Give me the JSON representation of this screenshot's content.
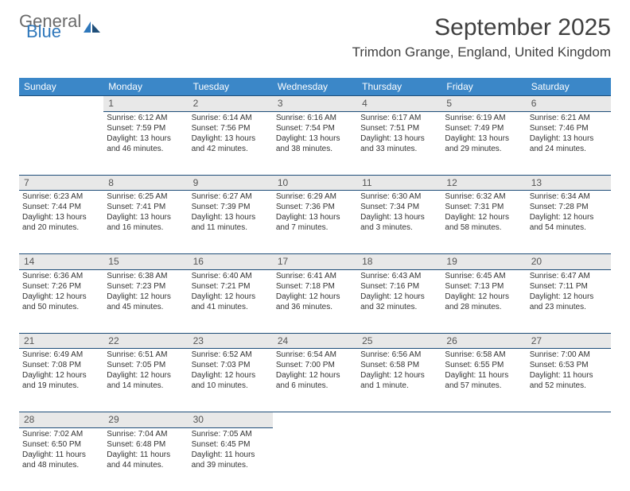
{
  "logo": {
    "word1": "General",
    "word2": "Blue"
  },
  "title": "September 2025",
  "location": "Trimdon Grange, England, United Kingdom",
  "colors": {
    "header_bg": "#3b87c8",
    "header_text": "#ffffff",
    "daynum_bg": "#e8e8e8",
    "border": "#1f4e79",
    "body_text": "#333333",
    "logo_gray": "#6a6a6a",
    "logo_blue": "#2e77bb"
  },
  "weekdays": [
    "Sunday",
    "Monday",
    "Tuesday",
    "Wednesday",
    "Thursday",
    "Friday",
    "Saturday"
  ],
  "weeks": [
    [
      null,
      {
        "n": "1",
        "sunrise": "Sunrise: 6:12 AM",
        "sunset": "Sunset: 7:59 PM",
        "d1": "Daylight: 13 hours",
        "d2": "and 46 minutes."
      },
      {
        "n": "2",
        "sunrise": "Sunrise: 6:14 AM",
        "sunset": "Sunset: 7:56 PM",
        "d1": "Daylight: 13 hours",
        "d2": "and 42 minutes."
      },
      {
        "n": "3",
        "sunrise": "Sunrise: 6:16 AM",
        "sunset": "Sunset: 7:54 PM",
        "d1": "Daylight: 13 hours",
        "d2": "and 38 minutes."
      },
      {
        "n": "4",
        "sunrise": "Sunrise: 6:17 AM",
        "sunset": "Sunset: 7:51 PM",
        "d1": "Daylight: 13 hours",
        "d2": "and 33 minutes."
      },
      {
        "n": "5",
        "sunrise": "Sunrise: 6:19 AM",
        "sunset": "Sunset: 7:49 PM",
        "d1": "Daylight: 13 hours",
        "d2": "and 29 minutes."
      },
      {
        "n": "6",
        "sunrise": "Sunrise: 6:21 AM",
        "sunset": "Sunset: 7:46 PM",
        "d1": "Daylight: 13 hours",
        "d2": "and 24 minutes."
      }
    ],
    [
      {
        "n": "7",
        "sunrise": "Sunrise: 6:23 AM",
        "sunset": "Sunset: 7:44 PM",
        "d1": "Daylight: 13 hours",
        "d2": "and 20 minutes."
      },
      {
        "n": "8",
        "sunrise": "Sunrise: 6:25 AM",
        "sunset": "Sunset: 7:41 PM",
        "d1": "Daylight: 13 hours",
        "d2": "and 16 minutes."
      },
      {
        "n": "9",
        "sunrise": "Sunrise: 6:27 AM",
        "sunset": "Sunset: 7:39 PM",
        "d1": "Daylight: 13 hours",
        "d2": "and 11 minutes."
      },
      {
        "n": "10",
        "sunrise": "Sunrise: 6:29 AM",
        "sunset": "Sunset: 7:36 PM",
        "d1": "Daylight: 13 hours",
        "d2": "and 7 minutes."
      },
      {
        "n": "11",
        "sunrise": "Sunrise: 6:30 AM",
        "sunset": "Sunset: 7:34 PM",
        "d1": "Daylight: 13 hours",
        "d2": "and 3 minutes."
      },
      {
        "n": "12",
        "sunrise": "Sunrise: 6:32 AM",
        "sunset": "Sunset: 7:31 PM",
        "d1": "Daylight: 12 hours",
        "d2": "and 58 minutes."
      },
      {
        "n": "13",
        "sunrise": "Sunrise: 6:34 AM",
        "sunset": "Sunset: 7:28 PM",
        "d1": "Daylight: 12 hours",
        "d2": "and 54 minutes."
      }
    ],
    [
      {
        "n": "14",
        "sunrise": "Sunrise: 6:36 AM",
        "sunset": "Sunset: 7:26 PM",
        "d1": "Daylight: 12 hours",
        "d2": "and 50 minutes."
      },
      {
        "n": "15",
        "sunrise": "Sunrise: 6:38 AM",
        "sunset": "Sunset: 7:23 PM",
        "d1": "Daylight: 12 hours",
        "d2": "and 45 minutes."
      },
      {
        "n": "16",
        "sunrise": "Sunrise: 6:40 AM",
        "sunset": "Sunset: 7:21 PM",
        "d1": "Daylight: 12 hours",
        "d2": "and 41 minutes."
      },
      {
        "n": "17",
        "sunrise": "Sunrise: 6:41 AM",
        "sunset": "Sunset: 7:18 PM",
        "d1": "Daylight: 12 hours",
        "d2": "and 36 minutes."
      },
      {
        "n": "18",
        "sunrise": "Sunrise: 6:43 AM",
        "sunset": "Sunset: 7:16 PM",
        "d1": "Daylight: 12 hours",
        "d2": "and 32 minutes."
      },
      {
        "n": "19",
        "sunrise": "Sunrise: 6:45 AM",
        "sunset": "Sunset: 7:13 PM",
        "d1": "Daylight: 12 hours",
        "d2": "and 28 minutes."
      },
      {
        "n": "20",
        "sunrise": "Sunrise: 6:47 AM",
        "sunset": "Sunset: 7:11 PM",
        "d1": "Daylight: 12 hours",
        "d2": "and 23 minutes."
      }
    ],
    [
      {
        "n": "21",
        "sunrise": "Sunrise: 6:49 AM",
        "sunset": "Sunset: 7:08 PM",
        "d1": "Daylight: 12 hours",
        "d2": "and 19 minutes."
      },
      {
        "n": "22",
        "sunrise": "Sunrise: 6:51 AM",
        "sunset": "Sunset: 7:05 PM",
        "d1": "Daylight: 12 hours",
        "d2": "and 14 minutes."
      },
      {
        "n": "23",
        "sunrise": "Sunrise: 6:52 AM",
        "sunset": "Sunset: 7:03 PM",
        "d1": "Daylight: 12 hours",
        "d2": "and 10 minutes."
      },
      {
        "n": "24",
        "sunrise": "Sunrise: 6:54 AM",
        "sunset": "Sunset: 7:00 PM",
        "d1": "Daylight: 12 hours",
        "d2": "and 6 minutes."
      },
      {
        "n": "25",
        "sunrise": "Sunrise: 6:56 AM",
        "sunset": "Sunset: 6:58 PM",
        "d1": "Daylight: 12 hours",
        "d2": "and 1 minute."
      },
      {
        "n": "26",
        "sunrise": "Sunrise: 6:58 AM",
        "sunset": "Sunset: 6:55 PM",
        "d1": "Daylight: 11 hours",
        "d2": "and 57 minutes."
      },
      {
        "n": "27",
        "sunrise": "Sunrise: 7:00 AM",
        "sunset": "Sunset: 6:53 PM",
        "d1": "Daylight: 11 hours",
        "d2": "and 52 minutes."
      }
    ],
    [
      {
        "n": "28",
        "sunrise": "Sunrise: 7:02 AM",
        "sunset": "Sunset: 6:50 PM",
        "d1": "Daylight: 11 hours",
        "d2": "and 48 minutes."
      },
      {
        "n": "29",
        "sunrise": "Sunrise: 7:04 AM",
        "sunset": "Sunset: 6:48 PM",
        "d1": "Daylight: 11 hours",
        "d2": "and 44 minutes."
      },
      {
        "n": "30",
        "sunrise": "Sunrise: 7:05 AM",
        "sunset": "Sunset: 6:45 PM",
        "d1": "Daylight: 11 hours",
        "d2": "and 39 minutes."
      },
      null,
      null,
      null,
      null
    ]
  ]
}
